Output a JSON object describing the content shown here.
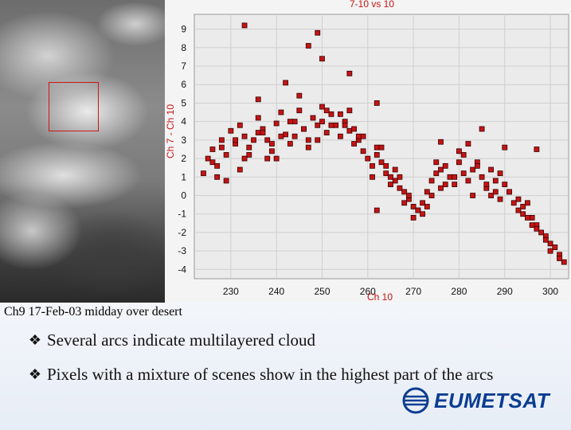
{
  "chart_data": {
    "type": "scatter",
    "title": "7-10 vs 10",
    "xlabel": "Ch 10",
    "ylabel": "Ch 7 - Ch 10",
    "xlim": [
      222,
      304
    ],
    "ylim": [
      -4.5,
      9.8
    ],
    "xticks": [
      "230",
      "240",
      "250",
      "260",
      "270",
      "280",
      "290",
      "300"
    ],
    "yticks": [
      "9",
      "8",
      "7",
      "6",
      "5",
      "4",
      "3",
      "2",
      "1",
      "0",
      "-1",
      "-2",
      "-3",
      "-4"
    ],
    "grid": true,
    "series": [
      {
        "marker_color": "#c41414",
        "x": [
          224,
          225,
          226,
          227,
          228,
          229,
          230,
          231,
          232,
          233,
          234,
          235,
          236,
          237,
          238,
          239,
          240,
          241,
          242,
          243,
          244,
          245,
          246,
          247,
          248,
          249,
          250,
          251,
          252,
          253,
          254,
          255,
          256,
          257,
          258,
          259,
          260,
          261,
          262,
          263,
          264,
          265,
          266,
          267,
          268,
          269,
          270,
          271,
          272,
          273,
          274,
          275,
          276,
          277,
          278,
          279,
          280,
          281,
          282,
          283,
          284,
          285,
          286,
          287,
          288,
          289,
          290,
          291,
          292,
          293,
          294,
          295,
          296,
          297,
          298,
          299,
          300,
          301,
          302,
          303,
          226,
          228,
          231,
          234,
          236,
          239,
          241,
          243,
          246,
          249,
          252,
          254,
          257,
          259,
          262,
          264,
          267,
          269,
          271,
          274,
          276,
          279,
          281,
          284,
          286,
          289,
          291,
          294,
          296,
          299,
          229,
          233,
          237,
          240,
          244,
          247,
          251,
          255,
          258,
          261,
          265,
          268,
          270,
          273,
          277,
          280,
          283,
          287,
          290,
          293,
          297,
          300,
          302,
          227,
          232,
          238,
          245,
          250,
          256,
          263,
          266,
          272,
          275,
          282,
          288,
          295,
          233,
          236,
          242,
          247,
          250,
          256,
          249,
          262,
          276,
          297,
          285,
          262
        ],
        "y": [
          1.2,
          2.0,
          2.5,
          1.0,
          3.0,
          2.2,
          3.5,
          2.8,
          3.8,
          3.2,
          2.6,
          3.0,
          4.2,
          3.6,
          3.0,
          2.4,
          3.9,
          4.5,
          3.3,
          2.8,
          4.0,
          4.6,
          3.6,
          3.0,
          4.2,
          3.8,
          4.0,
          3.4,
          4.4,
          3.8,
          3.2,
          4.0,
          3.5,
          2.8,
          3.0,
          2.4,
          2.0,
          1.6,
          2.2,
          1.8,
          1.2,
          1.0,
          0.8,
          0.4,
          0.2,
          -0.2,
          -0.6,
          -0.8,
          -0.4,
          0.2,
          0.8,
          1.2,
          0.4,
          1.6,
          1.0,
          0.6,
          1.8,
          1.2,
          0.8,
          1.4,
          1.8,
          1.0,
          0.4,
          0.0,
          0.8,
          1.2,
          0.6,
          0.2,
          -0.4,
          -0.8,
          -1.0,
          -0.4,
          -1.2,
          -1.6,
          -2.0,
          -2.2,
          -2.6,
          -2.8,
          -3.2,
          -3.6,
          1.8,
          2.6,
          3.0,
          2.2,
          3.4,
          2.8,
          3.2,
          4.0,
          3.6,
          3.0,
          3.8,
          4.4,
          3.6,
          3.2,
          2.6,
          1.6,
          1.0,
          0.0,
          -0.8,
          0.0,
          1.4,
          1.0,
          2.2,
          1.6,
          0.6,
          -0.2,
          0.2,
          -0.6,
          -1.6,
          -2.4,
          0.8,
          2.0,
          3.4,
          2.0,
          3.2,
          2.6,
          4.6,
          3.8,
          3.2,
          1.0,
          0.6,
          -0.4,
          -1.2,
          -0.6,
          0.6,
          2.4,
          0.0,
          1.4,
          2.6,
          -0.2,
          -1.8,
          -3.0,
          -3.4,
          1.6,
          1.4,
          2.0,
          5.4,
          4.8,
          4.6,
          2.6,
          1.4,
          -1.0,
          1.8,
          2.8,
          0.2,
          -1.2,
          9.2,
          5.2,
          6.1,
          8.1,
          7.4,
          6.6,
          8.8,
          5.0,
          2.9,
          2.5,
          3.6,
          -0.8
        ]
      }
    ]
  },
  "caption": "Ch9 17-Feb-03 midday over desert",
  "bullets": [
    "Several arcs indicate multilayered cloud",
    "Pixels with a mixture of scenes show in the highest part of  the arcs"
  ],
  "logo_text": "EUMETSAT",
  "icons": {
    "bullet": "diamond-bullet-icon",
    "logo": "eumetsat-logo-icon"
  },
  "colors": {
    "marker": "#c41414",
    "plot_bg": "#ebebeb",
    "label": "#c41414",
    "logo": "#0b3d91"
  }
}
